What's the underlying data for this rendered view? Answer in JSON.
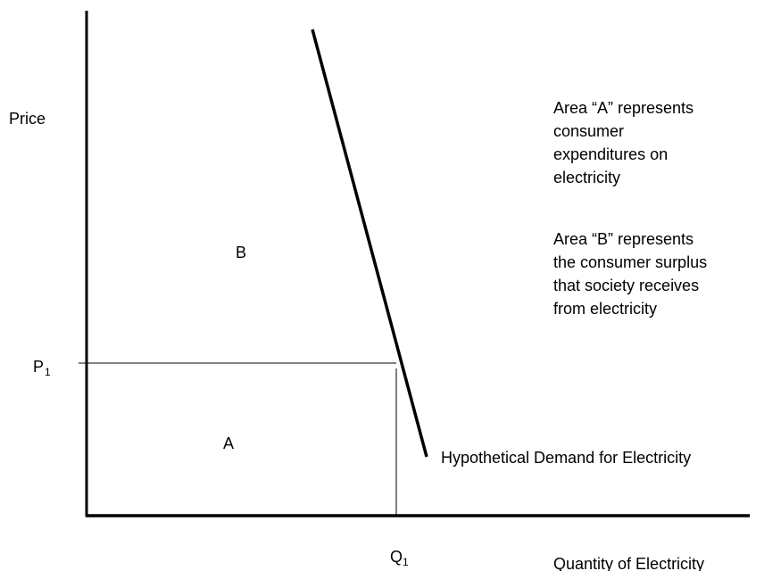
{
  "axes": {
    "y_label": "Price",
    "x_label": "Quantity of Electricity"
  },
  "price_label": {
    "text": "P",
    "subscript": "1"
  },
  "quantity_label": {
    "text": "Q",
    "subscript": "1"
  },
  "areas": {
    "a": "A",
    "b": "B"
  },
  "demand_label": "Hypothetical Demand for Electricity",
  "notes": [
    [
      "Area “A” represents",
      "consumer",
      "expenditures on",
      "electricity"
    ],
    [
      "Area “B” represents",
      "the consumer surplus",
      "that society receives",
      "from electricity"
    ]
  ]
}
